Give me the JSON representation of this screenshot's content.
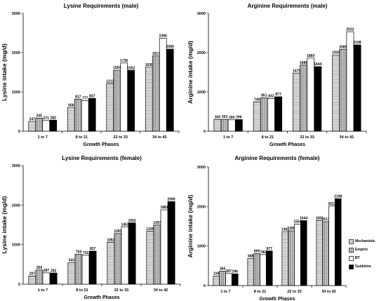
{
  "colors": {
    "Mechanistic": "#ffffff",
    "Empiric": "#d9d9d9",
    "BT": "#ffffff",
    "Guideline": "#000000"
  },
  "legend": {
    "items": [
      {
        "label": "Mechanistic",
        "pattern": "hatch-light"
      },
      {
        "label": "Empiric",
        "pattern": "hatch-dense"
      },
      {
        "label": "BT",
        "pattern": "plain"
      },
      {
        "label": "Guideline",
        "pattern": "solid"
      }
    ]
  },
  "chart_data": [
    {
      "type": "bar",
      "title": "Lysine Requirements (male)",
      "xlabel": "Growth Phases",
      "ylabel": "Lysine intake (mg/d)",
      "ylim": [
        0,
        3000
      ],
      "yticks": [
        "0",
        "1000",
        "2000",
        "3000"
      ],
      "categories": [
        "1 to 7",
        "8 to 21",
        "22 to 33",
        "34 to 42"
      ],
      "series": [
        {
          "name": "Mechanistic",
          "values": [
            247,
            606,
            1213,
            1630
          ]
        },
        {
          "name": "Empiric",
          "values": [
            335,
            817,
            1554,
            1917
          ]
        },
        {
          "name": "BT",
          "values": [
            271,
            777,
            1736,
            2366
          ]
        },
        {
          "name": "Guideline",
          "values": [
            282,
            837,
            1552,
            2090
          ]
        }
      ]
    },
    {
      "type": "bar",
      "title": "Arginine Requirements (male)",
      "xlabel": "Growth Phases",
      "ylabel": "Arginine intake (mg/d)",
      "ylim": [
        0,
        3000
      ],
      "yticks": [
        "0",
        "1000",
        "2000",
        "3000"
      ],
      "categories": [
        "1 to 7",
        "8 to 21",
        "22 to 33",
        "34 to 42"
      ],
      "series": [
        {
          "name": "Mechanistic",
          "values": [
            300,
            749,
            1479,
            1939
          ]
        },
        {
          "name": "Empiric",
          "values": [
            303,
            851,
            1686,
            2086
          ]
        },
        {
          "name": "BT",
          "values": [
            290,
            832,
            1860,
            2532
          ]
        },
        {
          "name": "Guideline",
          "values": [
            296,
            877,
            1644,
            2198
          ]
        }
      ]
    },
    {
      "type": "bar",
      "title": "Lysine Requirements (female)",
      "xlabel": "Growth Phases",
      "ylabel": "Lysine intake (mg/d)",
      "ylim": [
        0,
        3000
      ],
      "yticks": [
        "0",
        "1000",
        "2000",
        "3000"
      ],
      "categories": [
        "1 to 7",
        "8 to 21",
        "22 to 33",
        "34 to 42"
      ],
      "series": [
        {
          "name": "Mechanistic",
          "values": [
            207,
            543,
            1063,
            1336
          ]
        },
        {
          "name": "Empiric",
          "values": [
            359,
            759,
            1283,
            1497
          ]
        },
        {
          "name": "BT",
          "values": [
            287,
            731,
            1453,
            1881
          ]
        },
        {
          "name": "Guideline",
          "values": [
            282,
            837,
            1552,
            2090
          ]
        }
      ]
    },
    {
      "type": "bar",
      "title": "Arginine Requirements (female)",
      "xlabel": "Growth Phases",
      "ylabel": "Arginine  intake (mg/d)",
      "ylim": [
        0,
        3000
      ],
      "yticks": [
        "0",
        "1000",
        "2000",
        "3000"
      ],
      "categories": [
        "1 to 7",
        "8 to 21",
        "22 to 33",
        "34 to 42"
      ],
      "series": [
        {
          "name": "Mechanistic",
          "values": [
            239,
            688,
            1362,
            1650
          ]
        },
        {
          "name": "Empiric",
          "values": [
            365,
            809,
            1385,
            1617
          ]
        },
        {
          "name": "BT",
          "values": [
            307,
            782,
            1554,
            2013
          ]
        },
        {
          "name": "Guideline",
          "values": [
            296,
            877,
            1644,
            2198
          ]
        }
      ]
    }
  ]
}
